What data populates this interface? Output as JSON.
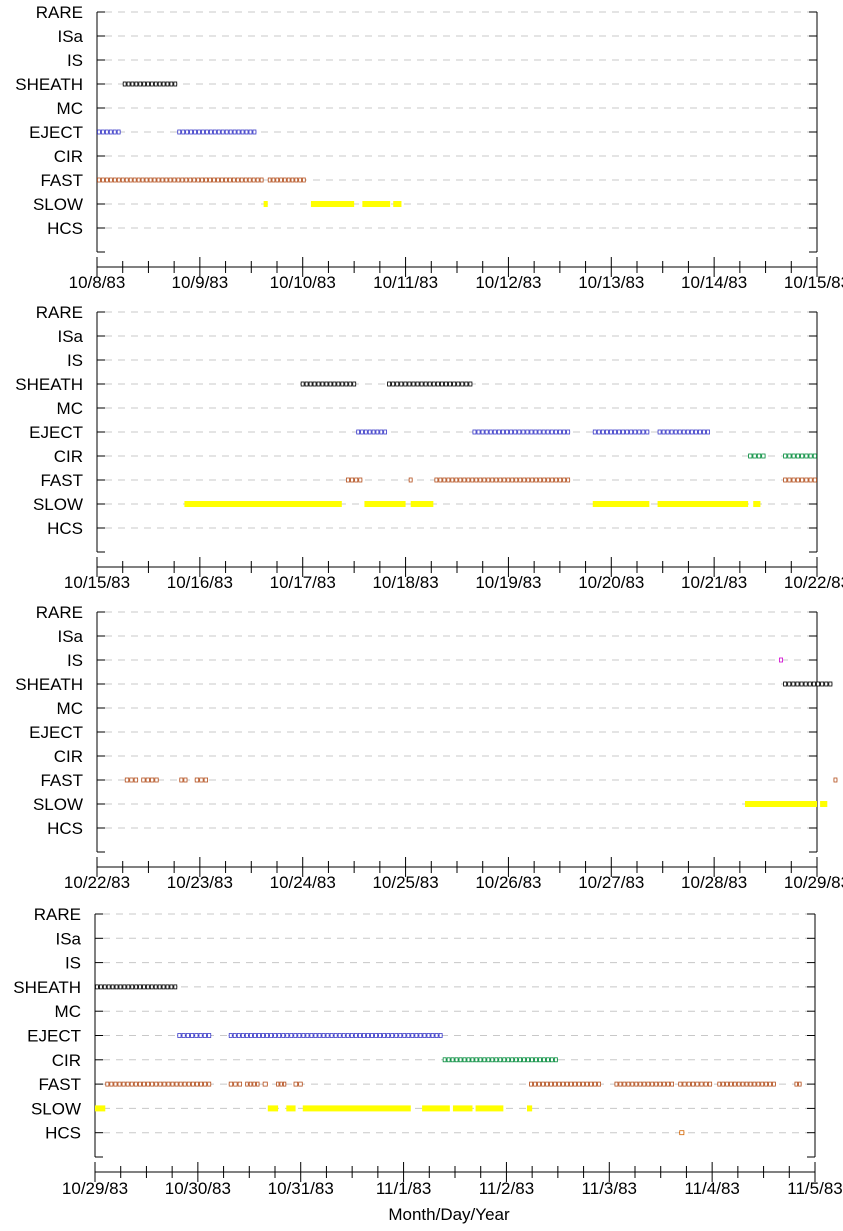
{
  "chart_data": {
    "type": "scatter",
    "categories": [
      "RARE",
      "ISa",
      "IS",
      "SHEATH",
      "MC",
      "EJECT",
      "CIR",
      "FAST",
      "SLOW",
      "HCS"
    ],
    "xlabel": "Month/Day/Year",
    "grid": "dashed horizontal at each category",
    "legend": "none",
    "series_colors": {
      "SHEATH": "#000000",
      "EJECT": "#3b3bc8",
      "CIR": "#008b3a",
      "FAST": "#b4501e",
      "SLOW": "#ffff00",
      "IS": "#d000d0",
      "HCS": "#d26400"
    },
    "panels": [
      {
        "tick_labels": [
          "10/8/83",
          "10/9/83",
          "10/10/83",
          "10/11/83",
          "10/12/83",
          "10/13/83",
          "10/14/83",
          "10/15/83"
        ],
        "xlim_days": [
          0,
          7
        ],
        "segments": [
          {
            "category": "SHEATH",
            "start": 0.25,
            "end": 0.78
          },
          {
            "category": "EJECT",
            "start": 0.0,
            "end": 0.23
          },
          {
            "category": "EJECT",
            "start": 0.78,
            "end": 1.55
          },
          {
            "category": "FAST",
            "start": 0.0,
            "end": 1.62
          },
          {
            "category": "FAST",
            "start": 1.66,
            "end": 2.03
          },
          {
            "category": "SLOW",
            "start": 1.62,
            "end": 1.66
          },
          {
            "category": "SLOW",
            "start": 2.08,
            "end": 2.5
          },
          {
            "category": "SLOW",
            "start": 2.58,
            "end": 2.85
          },
          {
            "category": "SLOW",
            "start": 2.88,
            "end": 2.96
          }
        ]
      },
      {
        "tick_labels": [
          "10/15/83",
          "10/16/83",
          "10/17/83",
          "10/18/83",
          "10/19/83",
          "10/20/83",
          "10/21/83",
          "10/22/83"
        ],
        "xlim_days": [
          0,
          7
        ],
        "segments": [
          {
            "category": "SHEATH",
            "start": 1.98,
            "end": 2.52
          },
          {
            "category": "SHEATH",
            "start": 2.82,
            "end": 3.65
          },
          {
            "category": "EJECT",
            "start": 2.52,
            "end": 2.82
          },
          {
            "category": "EJECT",
            "start": 3.65,
            "end": 4.6
          },
          {
            "category": "EJECT",
            "start": 4.82,
            "end": 5.37
          },
          {
            "category": "EJECT",
            "start": 5.45,
            "end": 5.96
          },
          {
            "category": "CIR",
            "start": 6.33,
            "end": 6.5
          },
          {
            "category": "CIR",
            "start": 6.67,
            "end": 7.0
          },
          {
            "category": "FAST",
            "start": 2.42,
            "end": 2.58
          },
          {
            "category": "FAST",
            "start": 3.03,
            "end": 3.06
          },
          {
            "category": "FAST",
            "start": 3.28,
            "end": 4.6
          },
          {
            "category": "FAST",
            "start": 6.67,
            "end": 7.0
          },
          {
            "category": "SLOW",
            "start": 0.85,
            "end": 2.38
          },
          {
            "category": "SLOW",
            "start": 2.6,
            "end": 3.0
          },
          {
            "category": "SLOW",
            "start": 3.05,
            "end": 3.27
          },
          {
            "category": "SLOW",
            "start": 4.82,
            "end": 5.37
          },
          {
            "category": "SLOW",
            "start": 5.45,
            "end": 6.33
          },
          {
            "category": "SLOW",
            "start": 6.38,
            "end": 6.45
          }
        ]
      },
      {
        "tick_labels": [
          "10/22/83",
          "10/23/83",
          "10/24/83",
          "10/25/83",
          "10/26/83",
          "10/27/83",
          "10/28/83",
          "10/29/83"
        ],
        "xlim_days": [
          0,
          7
        ],
        "segments": [
          {
            "category": "IS",
            "start": 6.63,
            "end": 6.67
          },
          {
            "category": "SHEATH",
            "start": 6.67,
            "end": 7.15
          },
          {
            "category": "FAST",
            "start": 0.27,
            "end": 0.4
          },
          {
            "category": "FAST",
            "start": 0.43,
            "end": 0.6
          },
          {
            "category": "FAST",
            "start": 0.8,
            "end": 0.88
          },
          {
            "category": "FAST",
            "start": 0.95,
            "end": 1.08
          },
          {
            "category": "FAST",
            "start": 7.16,
            "end": 7.18
          },
          {
            "category": "SLOW",
            "start": 6.3,
            "end": 7.0
          },
          {
            "category": "SLOW",
            "start": 7.03,
            "end": 7.1
          }
        ]
      },
      {
        "tick_labels": [
          "10/29/83",
          "10/30/83",
          "10/31/83",
          "11/1/83",
          "11/2/83",
          "11/3/83",
          "11/4/83",
          "11/5/83"
        ],
        "xlim_days": [
          0,
          7
        ],
        "segments": [
          {
            "category": "SHEATH",
            "start": 0.0,
            "end": 0.8
          },
          {
            "category": "EJECT",
            "start": 0.8,
            "end": 1.13
          },
          {
            "category": "EJECT",
            "start": 1.3,
            "end": 3.38
          },
          {
            "category": "CIR",
            "start": 3.38,
            "end": 4.5
          },
          {
            "category": "FAST",
            "start": 0.1,
            "end": 1.13
          },
          {
            "category": "FAST",
            "start": 1.3,
            "end": 1.43
          },
          {
            "category": "FAST",
            "start": 1.46,
            "end": 1.6
          },
          {
            "category": "FAST",
            "start": 1.63,
            "end": 1.68
          },
          {
            "category": "FAST",
            "start": 1.76,
            "end": 1.86
          },
          {
            "category": "FAST",
            "start": 1.93,
            "end": 2.02
          },
          {
            "category": "FAST",
            "start": 4.22,
            "end": 4.92
          },
          {
            "category": "FAST",
            "start": 5.05,
            "end": 5.63
          },
          {
            "category": "FAST",
            "start": 5.67,
            "end": 6.0
          },
          {
            "category": "FAST",
            "start": 6.05,
            "end": 6.62
          },
          {
            "category": "FAST",
            "start": 6.8,
            "end": 6.87
          },
          {
            "category": "SLOW",
            "start": 0.0,
            "end": 0.1
          },
          {
            "category": "SLOW",
            "start": 1.68,
            "end": 1.78
          },
          {
            "category": "SLOW",
            "start": 1.86,
            "end": 1.95
          },
          {
            "category": "SLOW",
            "start": 2.02,
            "end": 3.07
          },
          {
            "category": "SLOW",
            "start": 3.18,
            "end": 3.45
          },
          {
            "category": "SLOW",
            "start": 3.48,
            "end": 3.67
          },
          {
            "category": "SLOW",
            "start": 3.7,
            "end": 3.97
          },
          {
            "category": "SLOW",
            "start": 4.2,
            "end": 4.25
          },
          {
            "category": "HCS",
            "start": 5.68,
            "end": 5.73
          }
        ]
      }
    ]
  }
}
